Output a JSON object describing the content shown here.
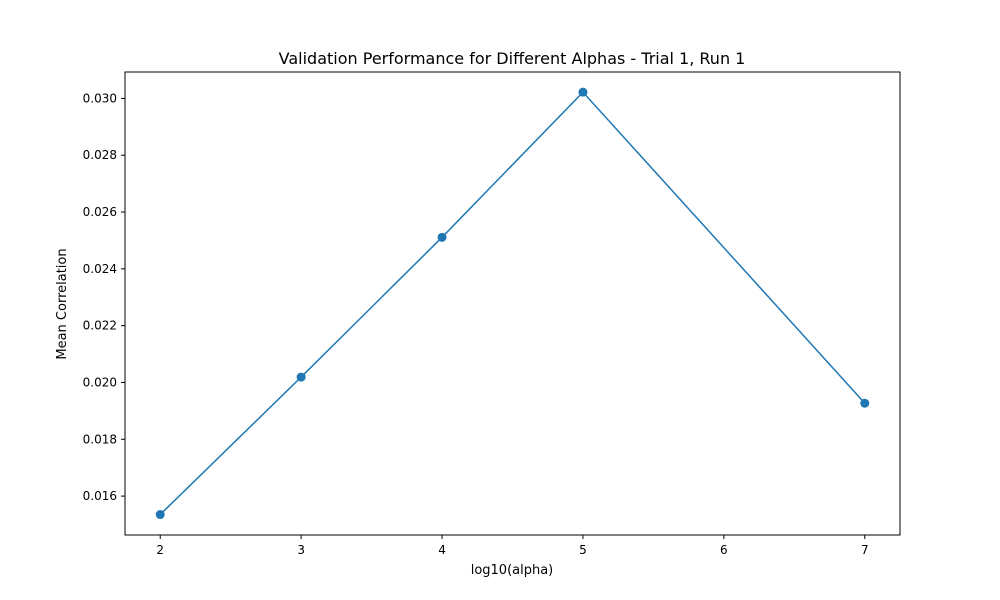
{
  "chart_data": {
    "type": "line",
    "title": "Validation Performance for Different Alphas - Trial 1, Run 1",
    "xlabel": "log10(alpha)",
    "ylabel": "Mean Correlation",
    "x": [
      2,
      3,
      4,
      5,
      7
    ],
    "series": [
      {
        "values": [
          0.01535,
          0.02019,
          0.02511,
          0.03022,
          0.01927
        ]
      }
    ],
    "xlim": [
      1.75,
      7.25
    ],
    "ylim": [
      0.01463,
      0.03093
    ],
    "xticks": [
      2,
      3,
      4,
      5,
      6,
      7
    ],
    "xtick_labels": [
      "2",
      "3",
      "4",
      "5",
      "6",
      "7"
    ],
    "yticks": [
      0.016,
      0.018,
      0.02,
      0.022,
      0.024,
      0.026,
      0.028,
      0.03
    ],
    "ytick_labels": [
      "0.016",
      "0.018",
      "0.020",
      "0.022",
      "0.024",
      "0.026",
      "0.028",
      "0.030"
    ],
    "grid": false,
    "marker": "circle",
    "color": "#1f77b4"
  }
}
